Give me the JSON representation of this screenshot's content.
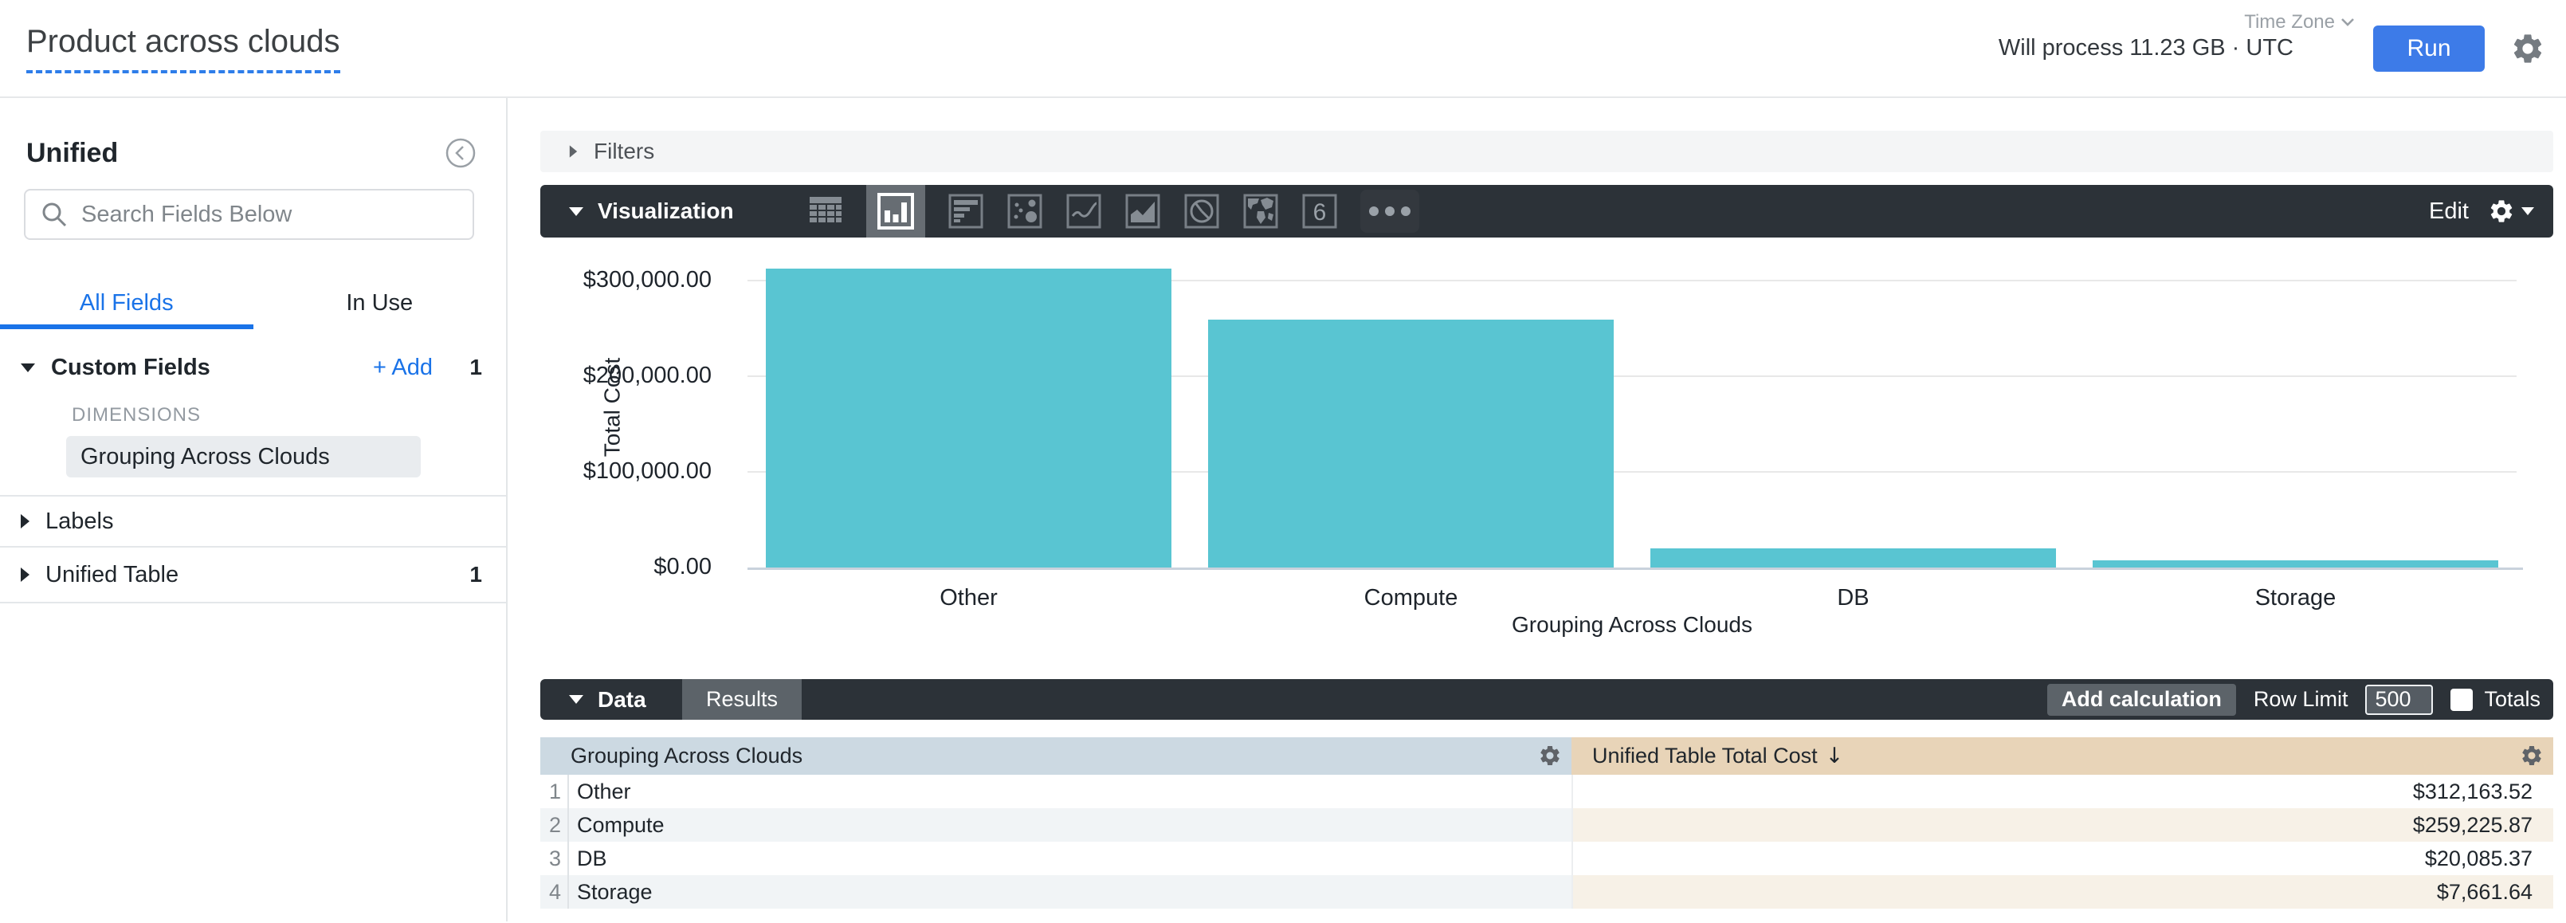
{
  "header": {
    "title": "Product across clouds",
    "will_process": "Will process 11.23 GB · UTC",
    "timezone_label": "Time Zone",
    "run_label": "Run"
  },
  "sidebar": {
    "view_name": "Unified",
    "search_placeholder": "Search Fields Below",
    "tabs": [
      {
        "label": "All Fields",
        "active": true
      },
      {
        "label": "In Use",
        "active": false
      }
    ],
    "custom_fields": {
      "label": "Custom Fields",
      "add_label": "+ Add",
      "count": "1",
      "group_label": "DIMENSIONS",
      "fields": [
        "Grouping Across Clouds"
      ]
    },
    "labels_section": {
      "label": "Labels"
    },
    "unified_table_section": {
      "label": "Unified Table",
      "count": "1"
    }
  },
  "filters": {
    "label": "Filters"
  },
  "visualization": {
    "label": "Visualization",
    "edit_label": "Edit",
    "single_value_glyph": "6",
    "icons": [
      "table-chart-icon",
      "column-chart-icon",
      "bar-chart-icon",
      "scatter-chart-icon",
      "line-chart-icon",
      "area-chart-icon",
      "pie-chart-icon",
      "map-chart-icon",
      "single-value-icon",
      "more-icon"
    ],
    "selected_icon": "column-chart-icon"
  },
  "chart_data": {
    "type": "bar",
    "categories": [
      "Other",
      "Compute",
      "DB",
      "Storage"
    ],
    "values": [
      312163.52,
      259225.87,
      20085.37,
      7661.64
    ],
    "title": "",
    "xlabel": "Grouping Across Clouds",
    "ylabel": "Total Cost",
    "ylim": [
      0,
      335000
    ],
    "yticks": [
      {
        "value": 0,
        "label": "$0.00"
      },
      {
        "value": 100000,
        "label": "$100,000.00"
      },
      {
        "value": 200000,
        "label": "$200,000.00"
      },
      {
        "value": 300000,
        "label": "$300,000.00"
      }
    ],
    "grid": "horizontal",
    "legend": "none",
    "bar_color": "#59c5d2"
  },
  "data_panel": {
    "label": "Data",
    "results_tab": "Results",
    "add_calculation": "Add calculation",
    "row_limit_label": "Row Limit",
    "row_limit_value": "500",
    "totals_label": "Totals"
  },
  "table": {
    "columns": [
      {
        "label": "Grouping Across Clouds",
        "type": "dimension"
      },
      {
        "label": "Unified Table Total Cost",
        "type": "measure",
        "sort_arrow": "↓",
        "sort": "desc"
      }
    ],
    "rows": [
      {
        "index": "1",
        "dimension": "Other",
        "value": "$312,163.52"
      },
      {
        "index": "2",
        "dimension": "Compute",
        "value": "$259,225.87"
      },
      {
        "index": "3",
        "dimension": "DB",
        "value": "$20,085.37"
      },
      {
        "index": "4",
        "dimension": "Storage",
        "value": "$7,661.64"
      }
    ]
  },
  "colors": {
    "accent_blue": "#1a73e8",
    "run_button": "#3d7be8",
    "dark_bar": "#2c3238",
    "bar_teal": "#59c5d2",
    "dim_header": "#ccd9e2",
    "measure_header": "#e8d4b8"
  }
}
